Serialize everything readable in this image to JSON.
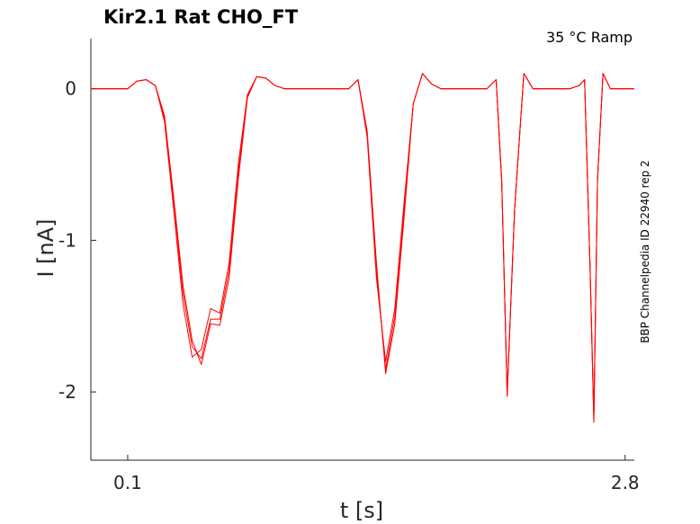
{
  "chart_data": {
    "type": "line",
    "title": "Kir2.1  Rat  CHO_FT",
    "subtitle": "35 °C  Ramp",
    "side_label": "BBP Channelpedia ID 22940 rep 2",
    "xlabel": "t [s]",
    "ylabel": "I [nA]",
    "xlim": [
      -0.1,
      2.85
    ],
    "ylim": [
      -2.45,
      0.33
    ],
    "xticks": [
      0.1,
      2.8
    ],
    "xtick_labels": [
      "0.1",
      "2.8"
    ],
    "yticks": [
      0,
      -1,
      -2
    ],
    "ytick_labels": [
      "0",
      "-1",
      "-2"
    ],
    "grid": false,
    "line_color": "#ff0000",
    "series": [
      {
        "x": [
          -0.1,
          0.0,
          0.1,
          0.15,
          0.2,
          0.25,
          0.3,
          0.35,
          0.4,
          0.45,
          0.5,
          0.55,
          0.6,
          0.65,
          0.7,
          0.75,
          0.8,
          0.85,
          0.9,
          0.95,
          1.0,
          1.1,
          1.2,
          1.3,
          1.35,
          1.4,
          1.45,
          1.5,
          1.55,
          1.6,
          1.65,
          1.7,
          1.75,
          1.8,
          1.9,
          2.0,
          2.05,
          2.1,
          2.13,
          2.16,
          2.2,
          2.25,
          2.3,
          2.4,
          2.5,
          2.55,
          2.58,
          2.61,
          2.63,
          2.65,
          2.68,
          2.72,
          2.85
        ],
        "y": [
          0.0,
          0.0,
          0.0,
          0.05,
          0.06,
          0.02,
          -0.2,
          -0.75,
          -1.35,
          -1.7,
          -1.78,
          -1.52,
          -1.52,
          -1.2,
          -0.55,
          -0.05,
          0.08,
          0.07,
          0.02,
          0.0,
          0.0,
          0.0,
          0.0,
          0.0,
          0.06,
          -0.3,
          -1.2,
          -1.85,
          -1.5,
          -0.8,
          -0.1,
          0.1,
          0.03,
          0.0,
          0.0,
          0.0,
          0.0,
          0.06,
          -0.6,
          -2.02,
          -0.8,
          0.1,
          0.0,
          0.0,
          0.0,
          0.02,
          0.06,
          -1.2,
          -2.2,
          -0.6,
          0.1,
          0.0,
          0.0
        ]
      },
      {
        "x": [
          -0.1,
          0.0,
          0.1,
          0.15,
          0.2,
          0.25,
          0.3,
          0.35,
          0.4,
          0.45,
          0.5,
          0.55,
          0.6,
          0.65,
          0.7,
          0.75,
          0.8,
          0.85,
          0.9,
          0.95,
          1.0,
          1.1,
          1.2,
          1.3,
          1.35,
          1.4,
          1.45,
          1.5,
          1.55,
          1.6,
          1.65,
          1.7,
          1.75,
          1.8,
          1.9,
          2.0,
          2.05,
          2.1,
          2.13,
          2.16,
          2.2,
          2.25,
          2.3,
          2.4,
          2.5,
          2.55,
          2.58,
          2.61,
          2.63,
          2.65,
          2.68,
          2.72,
          2.85
        ],
        "y": [
          0.0,
          0.0,
          0.0,
          0.05,
          0.06,
          0.02,
          -0.22,
          -0.8,
          -1.42,
          -1.77,
          -1.72,
          -1.45,
          -1.48,
          -1.15,
          -0.5,
          -0.04,
          0.08,
          0.07,
          0.02,
          0.0,
          0.0,
          0.0,
          0.0,
          0.0,
          0.06,
          -0.32,
          -1.25,
          -1.8,
          -1.45,
          -0.75,
          -0.1,
          0.1,
          0.03,
          0.0,
          0.0,
          0.0,
          0.0,
          0.06,
          -0.6,
          -2.0,
          -0.8,
          0.1,
          0.0,
          0.0,
          0.0,
          0.02,
          0.06,
          -1.2,
          -2.15,
          -0.6,
          0.1,
          0.0,
          0.0
        ]
      },
      {
        "x": [
          -0.1,
          0.0,
          0.1,
          0.15,
          0.2,
          0.25,
          0.3,
          0.35,
          0.4,
          0.45,
          0.5,
          0.55,
          0.6,
          0.65,
          0.7,
          0.75,
          0.8,
          0.85,
          0.9,
          0.95,
          1.0,
          1.1,
          1.2,
          1.3,
          1.35,
          1.4,
          1.45,
          1.5,
          1.55,
          1.6,
          1.65,
          1.7,
          1.75,
          1.8,
          1.9,
          2.0,
          2.05,
          2.1,
          2.13,
          2.16,
          2.2,
          2.25,
          2.3,
          2.4,
          2.5,
          2.55,
          2.58,
          2.61,
          2.63,
          2.65,
          2.68,
          2.72,
          2.85
        ],
        "y": [
          0.0,
          0.0,
          0.0,
          0.05,
          0.06,
          0.02,
          -0.18,
          -0.72,
          -1.3,
          -1.66,
          -1.82,
          -1.55,
          -1.56,
          -1.25,
          -0.6,
          -0.06,
          0.08,
          0.07,
          0.02,
          0.0,
          0.0,
          0.0,
          0.0,
          0.0,
          0.06,
          -0.28,
          -1.15,
          -1.88,
          -1.55,
          -0.85,
          -0.1,
          0.1,
          0.03,
          0.0,
          0.0,
          0.0,
          0.0,
          0.06,
          -0.62,
          -2.03,
          -0.8,
          0.1,
          0.0,
          0.0,
          0.0,
          0.02,
          0.06,
          -1.2,
          -2.2,
          -0.6,
          0.1,
          0.0,
          0.0
        ]
      }
    ]
  }
}
